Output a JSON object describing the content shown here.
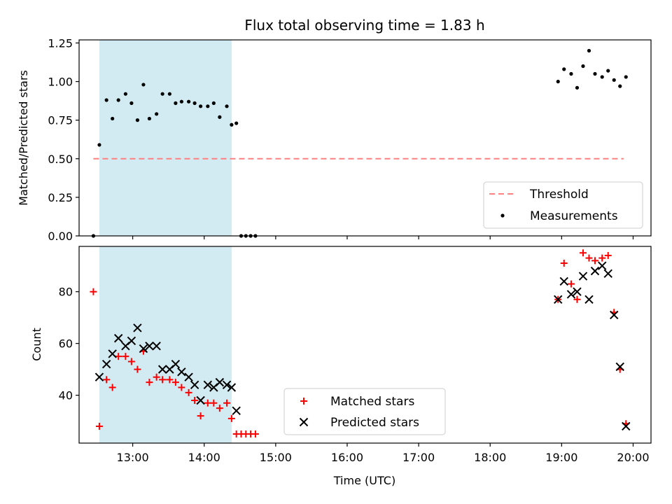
{
  "chart_data": [
    {
      "type": "scatter",
      "title": "Flux total observing time = 1.83 h",
      "xlabel": "",
      "ylabel": "Matched/Predicted stars",
      "xlim": [
        "12:15",
        "20:15"
      ],
      "ylim": [
        0,
        1.27
      ],
      "yticks": [
        0,
        0.25,
        0.5,
        0.75,
        1.0,
        1.25
      ],
      "ytick_labels": [
        "0.00",
        "0.25",
        "0.50",
        "0.75",
        "1.00",
        "1.25"
      ],
      "xticks": [
        "13:00",
        "14:00",
        "15:00",
        "16:00",
        "17:00",
        "18:00",
        "19:00",
        "20:00"
      ],
      "xtick_labels_visible": false,
      "shaded_span": {
        "start": "12:32",
        "end": "14:23",
        "color": "#add8e6"
      },
      "series": [
        {
          "name": "Threshold",
          "style": "dashed-line",
          "color": "#ff8080",
          "x": [
            "12:27",
            "19:52"
          ],
          "y": [
            0.5,
            0.5
          ]
        },
        {
          "name": "Measurements",
          "style": "dot",
          "color": "#000000",
          "x": [
            "12:27",
            "12:32",
            "12:38",
            "12:43",
            "12:48",
            "12:54",
            "12:59",
            "13:04",
            "13:09",
            "13:14",
            "13:20",
            "13:25",
            "13:31",
            "13:36",
            "13:41",
            "13:47",
            "13:52",
            "13:57",
            "14:03",
            "14:08",
            "14:13",
            "14:19",
            "14:23",
            "14:27",
            "14:31",
            "14:35",
            "14:39",
            "14:43",
            "18:57",
            "19:02",
            "19:08",
            "19:13",
            "19:18",
            "19:23",
            "19:28",
            "19:34",
            "19:39",
            "19:44",
            "19:49",
            "19:54"
          ],
          "y": [
            0.0,
            0.59,
            0.88,
            0.76,
            0.88,
            0.92,
            0.86,
            0.75,
            0.98,
            0.76,
            0.79,
            0.92,
            0.92,
            0.86,
            0.87,
            0.87,
            0.86,
            0.84,
            0.84,
            0.86,
            0.77,
            0.84,
            0.72,
            0.73,
            0.0,
            0.0,
            0.0,
            0.0,
            1.0,
            1.08,
            1.05,
            0.96,
            1.1,
            1.2,
            1.05,
            1.03,
            1.07,
            1.01,
            0.97,
            1.03
          ]
        }
      ],
      "legend": {
        "placement": "lower-right",
        "entries": [
          "Threshold",
          "Measurements"
        ]
      }
    },
    {
      "type": "scatter",
      "title": "",
      "xlabel": "Time (UTC)",
      "ylabel": "Count",
      "xlim": [
        "12:15",
        "20:15"
      ],
      "ylim": [
        21.5,
        97.5
      ],
      "yticks": [
        40,
        60,
        80
      ],
      "ytick_labels": [
        "40",
        "60",
        "80"
      ],
      "xticks": [
        "13:00",
        "14:00",
        "15:00",
        "16:00",
        "17:00",
        "18:00",
        "19:00",
        "20:00"
      ],
      "xtick_labels": [
        "13:00",
        "14:00",
        "15:00",
        "16:00",
        "17:00",
        "18:00",
        "19:00",
        "20:00"
      ],
      "shaded_span": {
        "start": "12:32",
        "end": "14:23",
        "color": "#add8e6"
      },
      "series": [
        {
          "name": "Matched stars",
          "marker": "plus",
          "color": "#ff0000",
          "x": [
            "12:27",
            "12:32",
            "12:38",
            "12:43",
            "12:48",
            "12:54",
            "12:59",
            "13:04",
            "13:09",
            "13:14",
            "13:20",
            "13:25",
            "13:31",
            "13:36",
            "13:41",
            "13:47",
            "13:52",
            "13:57",
            "14:03",
            "14:08",
            "14:13",
            "14:19",
            "14:23",
            "14:27",
            "14:31",
            "14:35",
            "14:39",
            "14:43",
            "18:57",
            "19:02",
            "19:08",
            "19:13",
            "19:18",
            "19:23",
            "19:28",
            "19:34",
            "19:39",
            "19:44",
            "19:49",
            "19:54"
          ],
          "y": [
            80,
            28,
            46,
            43,
            55,
            55,
            53,
            50,
            57,
            45,
            47,
            46,
            46,
            45,
            43,
            41,
            38,
            32,
            37,
            37,
            35,
            37,
            31,
            25,
            25,
            25,
            25,
            25,
            77,
            91,
            83,
            77,
            95,
            93,
            92,
            93,
            94,
            72,
            50,
            29
          ]
        },
        {
          "name": "Predicted stars",
          "marker": "x",
          "color": "#000000",
          "x": [
            "12:32",
            "12:38",
            "12:43",
            "12:48",
            "12:54",
            "12:59",
            "13:04",
            "13:09",
            "13:14",
            "13:20",
            "13:25",
            "13:31",
            "13:36",
            "13:41",
            "13:47",
            "13:52",
            "13:57",
            "14:03",
            "14:08",
            "14:13",
            "14:19",
            "14:23",
            "14:27",
            "18:57",
            "19:02",
            "19:08",
            "19:13",
            "19:18",
            "19:23",
            "19:28",
            "19:34",
            "19:39",
            "19:44",
            "19:49",
            "19:54"
          ],
          "y": [
            47,
            52,
            56,
            62,
            59,
            61,
            66,
            58,
            59,
            59,
            50,
            50,
            52,
            49,
            47,
            44,
            38,
            44,
            43,
            45,
            44,
            43,
            34,
            77,
            84,
            79,
            80,
            86,
            77,
            88,
            90,
            87,
            71,
            51,
            28
          ]
        }
      ],
      "legend": {
        "placement": "lower-center",
        "entries": [
          "Matched stars",
          "Predicted stars"
        ]
      }
    }
  ]
}
